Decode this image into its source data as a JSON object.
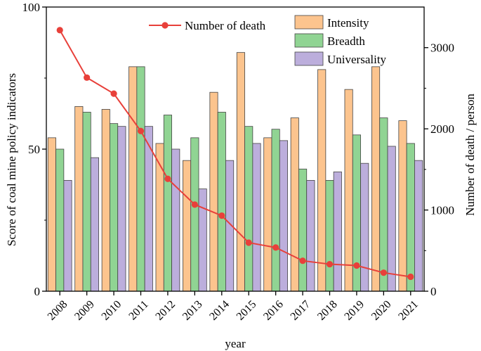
{
  "chart_data": {
    "type": "bar",
    "title": "",
    "xlabel": "year",
    "ylabel": "Score of coal mine policy indicators",
    "y2label": "Number of death / person",
    "ylim": [
      0,
      100
    ],
    "y2lim": [
      0,
      3500
    ],
    "yticks": [
      "0",
      "50",
      "100"
    ],
    "y2ticks": [
      "0",
      "1000",
      "2000",
      "3000"
    ],
    "categories": [
      "2008",
      "2009",
      "2010",
      "2011",
      "2012",
      "2013",
      "2014",
      "2015",
      "2016",
      "2017",
      "2018",
      "2019",
      "2020",
      "2021"
    ],
    "series": [
      {
        "name": "Intensity",
        "axis": "left",
        "kind": "bar",
        "color": "#fcc48e",
        "values": [
          54,
          65,
          64,
          79,
          52,
          46,
          70,
          84,
          54,
          61,
          78,
          71,
          79,
          60
        ]
      },
      {
        "name": "Breadth",
        "axis": "left",
        "kind": "bar",
        "color": "#90d493",
        "values": [
          50,
          63,
          59,
          79,
          62,
          54,
          63,
          58,
          57,
          43,
          39,
          55,
          61,
          52
        ]
      },
      {
        "name": "Universality",
        "axis": "left",
        "kind": "bar",
        "color": "#bcaedc",
        "values": [
          39,
          47,
          58,
          58,
          50,
          36,
          46,
          52,
          53,
          39,
          42,
          45,
          51,
          46
        ]
      },
      {
        "name": "Number of death",
        "axis": "right",
        "kind": "line",
        "color": "#e8403a",
        "values": [
          3215,
          2631,
          2433,
          1973,
          1384,
          1067,
          931,
          598,
          538,
          375,
          333,
          316,
          228,
          178
        ]
      }
    ],
    "legend_position": "top-right"
  }
}
